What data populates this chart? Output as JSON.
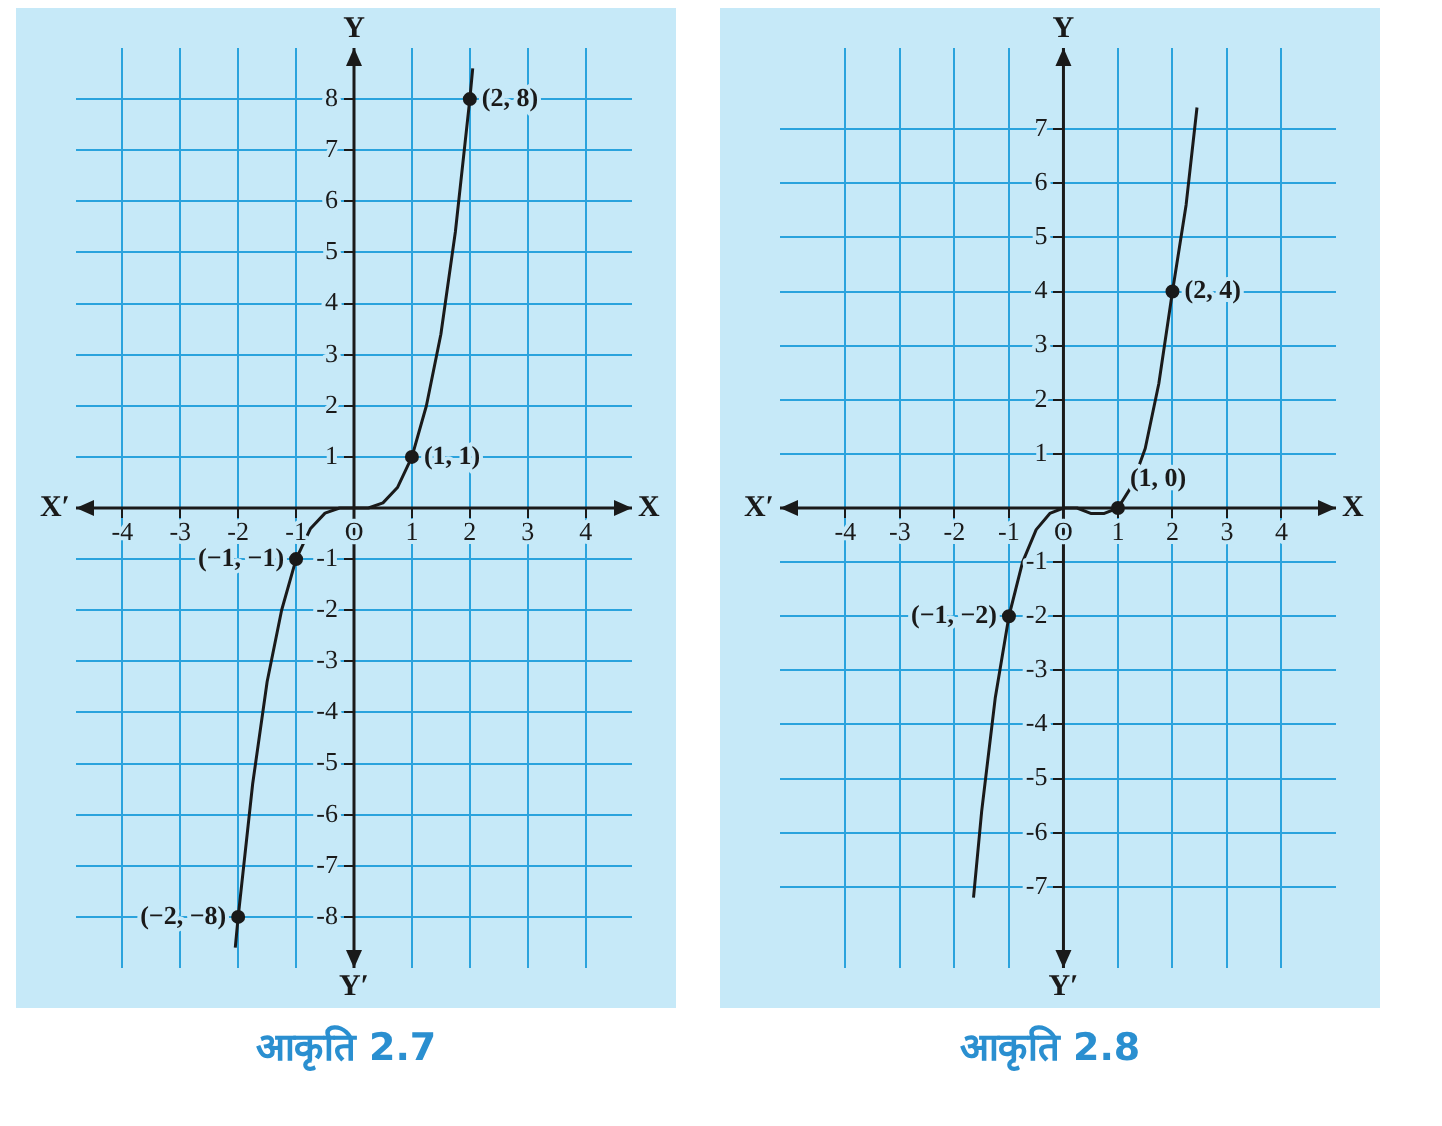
{
  "chart_data": [
    {
      "type": "line",
      "title": "आकृति 2.7",
      "xlabel": "X",
      "ylabel": "Y",
      "xlim": [
        -4.8,
        4.8
      ],
      "ylim": [
        -9,
        9
      ],
      "xticks": [
        -4,
        -3,
        -2,
        -1,
        {
          "value": 0,
          "label": "O"
        },
        1,
        2,
        3,
        4
      ],
      "yticks": [
        -8,
        -7,
        -6,
        -5,
        -4,
        -3,
        -2,
        -1,
        1,
        2,
        3,
        4,
        5,
        6,
        7,
        8
      ],
      "grid": true,
      "legend": false,
      "series": [
        {
          "color": "#1a1a1a",
          "marker": "none",
          "line_style": "solid",
          "x": [
            -2.05,
            -2,
            -1.75,
            -1.5,
            -1.25,
            -1,
            -0.75,
            -0.5,
            -0.25,
            0,
            0.25,
            0.5,
            0.75,
            1,
            1.25,
            1.5,
            1.75,
            2,
            2.05
          ],
          "values": [
            -8.6,
            -8,
            -5.4,
            -3.4,
            -2,
            -1,
            -0.4,
            -0.1,
            0,
            0,
            0,
            0.1,
            0.4,
            1,
            2,
            3.4,
            5.4,
            8,
            8.6
          ]
        },
        {
          "type": "scatter",
          "color": "#1a1a1a",
          "marker": "circle",
          "x": [
            -2,
            -1,
            1,
            2
          ],
          "values": [
            -8,
            -1,
            1,
            8
          ]
        }
      ],
      "annotations": [
        {
          "text": "(2, 8)",
          "x": 2,
          "y": 8
        },
        {
          "text": "(1, 1)",
          "x": 1,
          "y": 1
        },
        {
          "text": "(−1, −1)",
          "x": -1,
          "y": -1
        },
        {
          "text": "(−2, −8)",
          "x": -2,
          "y": -8
        },
        "X′",
        "Y′"
      ]
    },
    {
      "type": "line",
      "title": "आकृति 2.8",
      "xlabel": "X",
      "ylabel": "Y",
      "xlim": [
        -5.2,
        5
      ],
      "ylim": [
        -8.5,
        8.5
      ],
      "xticks": [
        -4,
        -3,
        -2,
        -1,
        {
          "value": 0,
          "label": "O"
        },
        1,
        2,
        3,
        4
      ],
      "yticks": [
        -7,
        -6,
        -5,
        -4,
        -3,
        -2,
        -1,
        1,
        2,
        3,
        4,
        5,
        6,
        7
      ],
      "grid": true,
      "legend": false,
      "series": [
        {
          "color": "#1a1a1a",
          "marker": "none",
          "line_style": "solid",
          "x": [
            -1.65,
            -1.5,
            -1.25,
            -1,
            -0.75,
            -0.5,
            -0.25,
            0,
            0.25,
            0.5,
            0.75,
            1,
            1.25,
            1.5,
            1.75,
            2,
            2.25,
            2.45
          ],
          "values": [
            -7.2,
            -5.6,
            -3.5,
            -2,
            -1,
            -0.4,
            -0.1,
            0,
            0,
            -0.1,
            -0.1,
            0,
            0.4,
            1.1,
            2.3,
            4,
            5.6,
            7.4
          ]
        },
        {
          "type": "scatter",
          "color": "#1a1a1a",
          "marker": "circle",
          "x": [
            -1,
            1,
            2
          ],
          "values": [
            -2,
            0,
            4
          ]
        }
      ],
      "annotations": [
        {
          "text": "(2, 4)",
          "x": 2,
          "y": 4
        },
        {
          "text": "(1, 0)",
          "x": 1,
          "y": 0
        },
        {
          "text": "(−1, −2)",
          "x": -1,
          "y": -2
        },
        "X′",
        "Y′"
      ]
    }
  ]
}
